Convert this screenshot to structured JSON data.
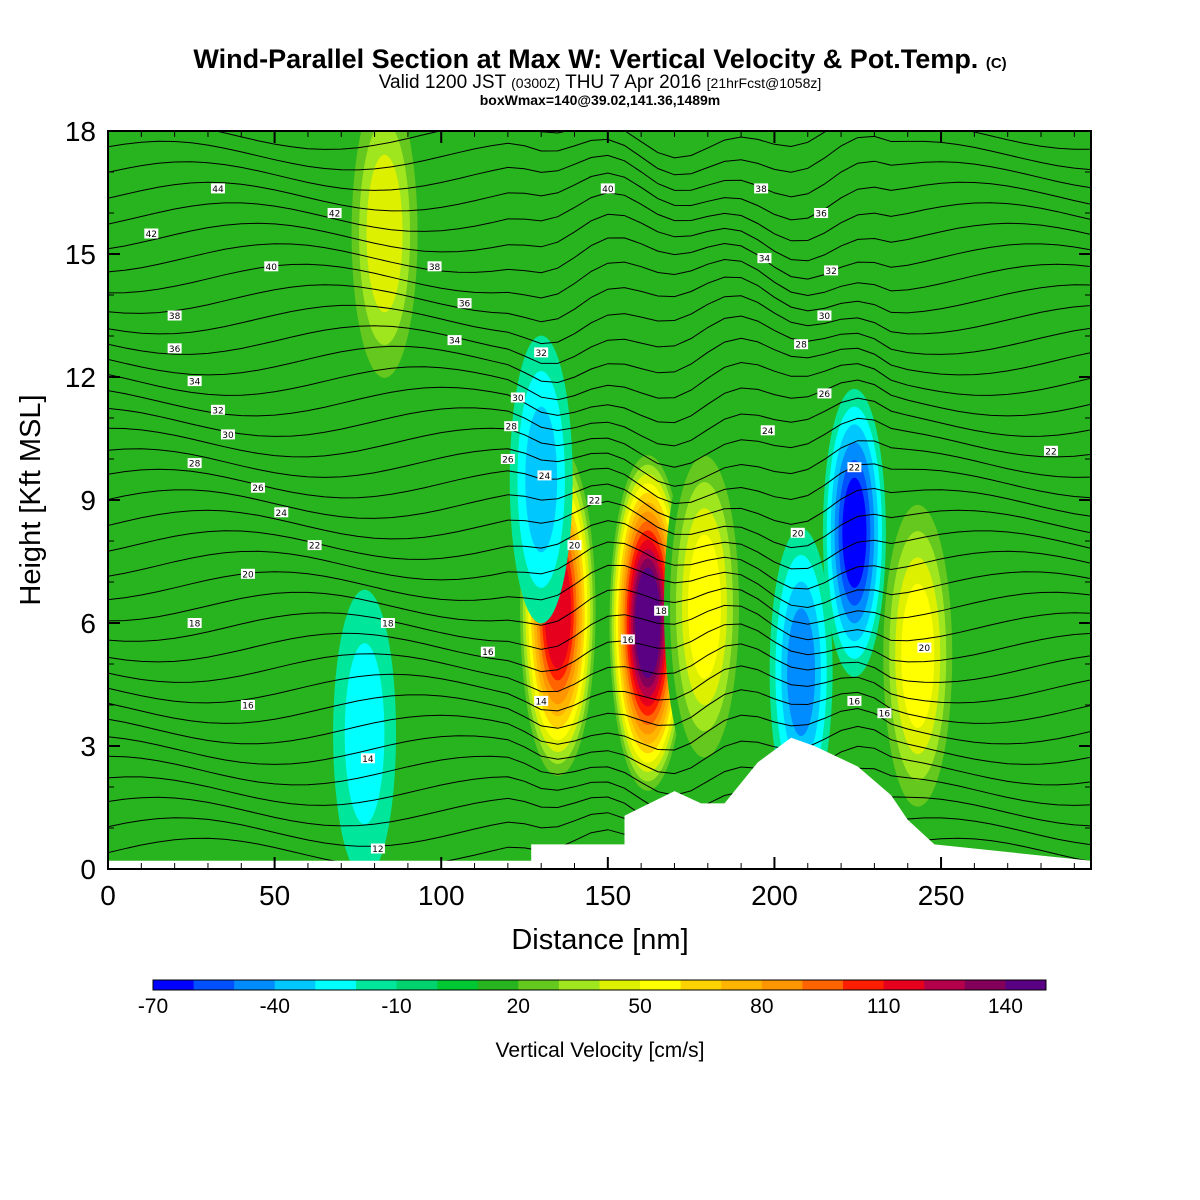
{
  "header": {
    "title": "Wind-Parallel Section at Max W: Vertical Velocity & Pot.Temp.",
    "title_mark": "(C)",
    "valid_prefix": "Valid 1200 JST",
    "valid_utc": "(0300Z)",
    "valid_date": "THU 7 Apr 2016",
    "forecast": "[21hrFcst@1058z]",
    "box_info": "boxWmax=140@39.02,141.36,1489m"
  },
  "chart_data": {
    "type": "heatmap",
    "xlabel": "Distance [nm]",
    "ylabel": "Height [Kft MSL]",
    "xlim": [
      0,
      295
    ],
    "ylim": [
      0,
      18
    ],
    "x_ticks": [
      "0",
      "50",
      "100",
      "150",
      "200",
      "250"
    ],
    "x_tick_values": [
      0,
      50,
      100,
      150,
      200,
      250
    ],
    "y_ticks": [
      "0",
      "3",
      "6",
      "9",
      "12",
      "15",
      "18"
    ],
    "y_tick_values": [
      0,
      3,
      6,
      9,
      12,
      15,
      18
    ],
    "colorbar": {
      "title": "Vertical Velocity [cm/s]",
      "labels": [
        "-70",
        "-40",
        "-10",
        "20",
        "50",
        "80",
        "110",
        "140"
      ],
      "label_values": [
        -70,
        -40,
        -10,
        20,
        50,
        80,
        110,
        140
      ],
      "min": -70,
      "step": 10,
      "colors": [
        "#0000ff",
        "#0050ff",
        "#008cff",
        "#00c8ff",
        "#00ffff",
        "#00e69b",
        "#00d26e",
        "#00c832",
        "#28b41e",
        "#64c81e",
        "#a0e61e",
        "#dcf000",
        "#ffff00",
        "#ffd200",
        "#ffb400",
        "#ff9600",
        "#ff6400",
        "#ff1e00",
        "#e6001e",
        "#b4004b",
        "#82005a",
        "#5a0082"
      ]
    },
    "terrain": [
      [
        0,
        0.2
      ],
      [
        127,
        0.2
      ],
      [
        127,
        0.6
      ],
      [
        155,
        0.6
      ],
      [
        155,
        1.3
      ],
      [
        170,
        1.9
      ],
      [
        178,
        1.6
      ],
      [
        185,
        1.6
      ],
      [
        195,
        2.6
      ],
      [
        205,
        3.2
      ],
      [
        212,
        3.0
      ],
      [
        225,
        2.5
      ],
      [
        235,
        1.8
      ],
      [
        240,
        1.2
      ],
      [
        248,
        0.6
      ],
      [
        295,
        0.2
      ]
    ],
    "vertical_velocity_cells": [
      {
        "x": 135,
        "z": 6.3,
        "w": 110,
        "label": "updraft"
      },
      {
        "x": 162,
        "z": 6.0,
        "w": 140,
        "label": "updraft"
      },
      {
        "x": 179,
        "z": 6.4,
        "w": 50,
        "label": "updraft"
      },
      {
        "x": 243,
        "z": 5.2,
        "w": 50,
        "label": "updraft"
      },
      {
        "x": 83,
        "z": 15.5,
        "w": 45,
        "label": "updraft"
      },
      {
        "x": 224,
        "z": 8.2,
        "w": -60,
        "label": "downdraft"
      },
      {
        "x": 208,
        "z": 4.8,
        "w": -40,
        "label": "downdraft"
      },
      {
        "x": 130,
        "z": 9.5,
        "w": -30,
        "label": "downdraft"
      },
      {
        "x": 77,
        "z": 3.3,
        "w": -20,
        "label": "downdraft"
      }
    ],
    "theta_contour_labels": [
      {
        "text": "44",
        "x": 33,
        "z": 16.6
      },
      {
        "text": "42",
        "x": 13,
        "z": 15.5
      },
      {
        "text": "42",
        "x": 68,
        "z": 16.0
      },
      {
        "text": "40",
        "x": 49,
        "z": 14.7
      },
      {
        "text": "40",
        "x": 150,
        "z": 16.6
      },
      {
        "text": "38",
        "x": 98,
        "z": 14.7
      },
      {
        "text": "38",
        "x": 196,
        "z": 16.6
      },
      {
        "text": "38",
        "x": 20,
        "z": 13.5
      },
      {
        "text": "36",
        "x": 107,
        "z": 13.8
      },
      {
        "text": "36",
        "x": 214,
        "z": 16.0
      },
      {
        "text": "36",
        "x": 20,
        "z": 12.7
      },
      {
        "text": "34",
        "x": 104,
        "z": 12.9
      },
      {
        "text": "34",
        "x": 197,
        "z": 14.9
      },
      {
        "text": "34",
        "x": 26,
        "z": 11.9
      },
      {
        "text": "32",
        "x": 130,
        "z": 12.6
      },
      {
        "text": "32",
        "x": 217,
        "z": 14.6
      },
      {
        "text": "32",
        "x": 33,
        "z": 11.2
      },
      {
        "text": "30",
        "x": 123,
        "z": 11.5
      },
      {
        "text": "30",
        "x": 215,
        "z": 13.5
      },
      {
        "text": "30",
        "x": 36,
        "z": 10.6
      },
      {
        "text": "28",
        "x": 121,
        "z": 10.8
      },
      {
        "text": "28",
        "x": 208,
        "z": 12.8
      },
      {
        "text": "28",
        "x": 26,
        "z": 9.9
      },
      {
        "text": "26",
        "x": 120,
        "z": 10.0
      },
      {
        "text": "26",
        "x": 215,
        "z": 11.6
      },
      {
        "text": "26",
        "x": 45,
        "z": 9.3
      },
      {
        "text": "24",
        "x": 131,
        "z": 9.6
      },
      {
        "text": "24",
        "x": 198,
        "z": 10.7
      },
      {
        "text": "24",
        "x": 52,
        "z": 8.7
      },
      {
        "text": "22",
        "x": 146,
        "z": 9.0
      },
      {
        "text": "22",
        "x": 224,
        "z": 9.8
      },
      {
        "text": "22",
        "x": 283,
        "z": 10.2
      },
      {
        "text": "22",
        "x": 62,
        "z": 7.9
      },
      {
        "text": "20",
        "x": 140,
        "z": 7.9
      },
      {
        "text": "20",
        "x": 207,
        "z": 8.2
      },
      {
        "text": "20",
        "x": 245,
        "z": 5.4
      },
      {
        "text": "20",
        "x": 42,
        "z": 7.2
      },
      {
        "text": "18",
        "x": 166,
        "z": 6.3
      },
      {
        "text": "18",
        "x": 26,
        "z": 6.0
      },
      {
        "text": "18",
        "x": 84,
        "z": 6.0
      },
      {
        "text": "16",
        "x": 156,
        "z": 5.6
      },
      {
        "text": "16",
        "x": 114,
        "z": 5.3
      },
      {
        "text": "16",
        "x": 224,
        "z": 4.1
      },
      {
        "text": "16",
        "x": 42,
        "z": 4.0
      },
      {
        "text": "14",
        "x": 130,
        "z": 4.1
      },
      {
        "text": "16",
        "x": 233,
        "z": 3.8
      },
      {
        "text": "14",
        "x": 78,
        "z": 2.7
      },
      {
        "text": "12",
        "x": 81,
        "z": 0.5
      }
    ]
  }
}
